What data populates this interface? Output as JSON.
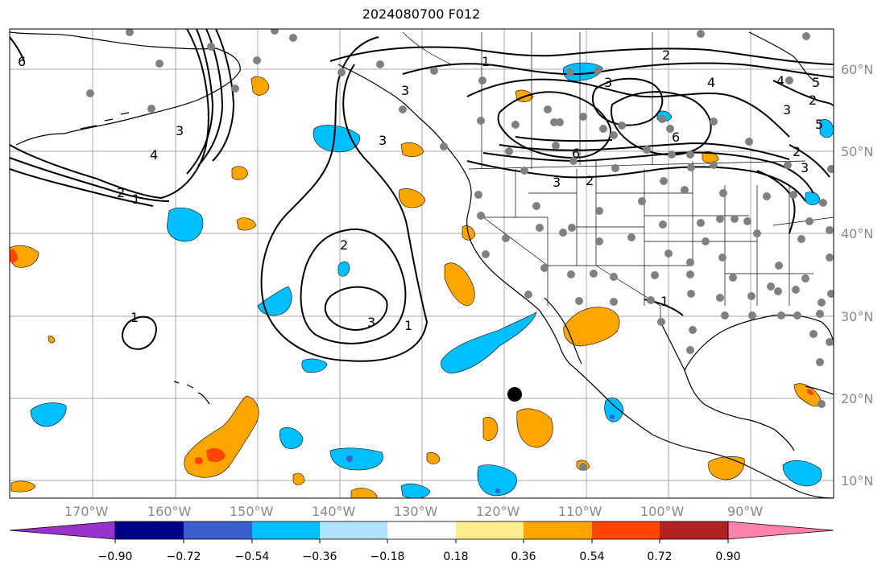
{
  "title": "2024080700 F012",
  "longitude_labels": [
    "170°W",
    "160°W",
    "150°W",
    "140°W",
    "130°W",
    "120°W",
    "110°W",
    "100°W",
    "90°W"
  ],
  "latitude_labels": [
    "60°N",
    "50°N",
    "40°N",
    "30°N",
    "20°N",
    "10°N"
  ],
  "colorbar": {
    "tick_labels": [
      "−0.90",
      "−0.72",
      "−0.54",
      "−0.36",
      "−0.18",
      "0.18",
      "0.36",
      "0.54",
      "0.72",
      "0.90"
    ],
    "colors": [
      "#9932cc",
      "#00008b",
      "#3a5fcd",
      "#00bfff",
      "#b0e2ff",
      "#ffffff",
      "#ffec8b",
      "#ffa500",
      "#ff4500",
      "#b22222",
      "#ff82ab"
    ]
  },
  "contour_labels": [
    "6",
    "4",
    "3",
    "2",
    "1",
    "2",
    "3",
    "1",
    "3",
    "2",
    "3",
    "1",
    "1",
    "2",
    "3",
    "4",
    "5",
    "6",
    "2",
    "3",
    "4",
    "5",
    "6",
    "3",
    "2",
    "1",
    "3"
  ],
  "colors": {
    "cool_fill": "#00bfff",
    "warm_fill": "#ffa500",
    "hot_fill": "#ff4500",
    "station": "#808080",
    "marker": "#000000"
  }
}
